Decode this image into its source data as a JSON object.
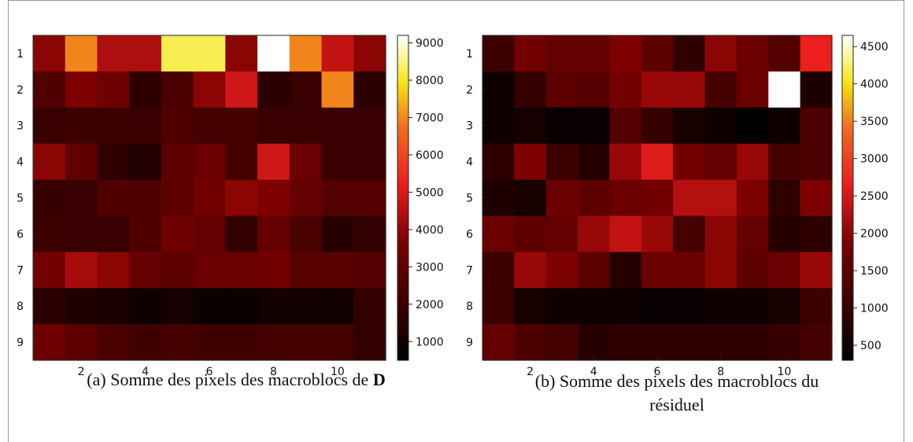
{
  "captions": {
    "a_prefix": "(a) Somme des pixels des macroblocs de ",
    "a_bold": "D",
    "b_line1": "(b) Somme des pixels des macroblocs du",
    "b_line2": "résiduel"
  },
  "chart_data": [
    {
      "type": "heatmap",
      "xticks": [
        2,
        4,
        6,
        8,
        10
      ],
      "yticks": [
        1,
        2,
        3,
        4,
        5,
        6,
        7,
        8,
        9
      ],
      "colormap": "hot",
      "clim": [
        500,
        9200
      ],
      "colorbar_ticks": [
        1000,
        2000,
        3000,
        4000,
        5000,
        6000,
        7000,
        8000,
        9000
      ],
      "values": [
        [
          3900,
          7000,
          4400,
          4400,
          8300,
          8300,
          3900,
          9200,
          7000,
          4700,
          3900
        ],
        [
          2600,
          3700,
          3400,
          1700,
          2400,
          3900,
          4900,
          1600,
          2000,
          7000,
          1600
        ],
        [
          2000,
          2100,
          2100,
          2000,
          2600,
          2300,
          2300,
          2000,
          2000,
          2000,
          2000
        ],
        [
          3900,
          3000,
          1700,
          1400,
          2900,
          3300,
          2300,
          4900,
          3300,
          2000,
          2000
        ],
        [
          1900,
          2000,
          2600,
          2600,
          2900,
          3500,
          3900,
          3700,
          3100,
          2700,
          2700
        ],
        [
          2100,
          2000,
          2000,
          2600,
          3400,
          3100,
          1800,
          3100,
          2400,
          1500,
          1800
        ],
        [
          3500,
          4300,
          3900,
          3200,
          2900,
          3300,
          3300,
          3500,
          2800,
          2800,
          2700
        ],
        [
          1600,
          1300,
          1200,
          900,
          1100,
          800,
          800,
          1000,
          1000,
          1000,
          1800
        ],
        [
          3400,
          2900,
          2400,
          2200,
          2300,
          2200,
          2200,
          2300,
          2300,
          2300,
          1800
        ]
      ]
    },
    {
      "type": "heatmap",
      "xticks": [
        2,
        4,
        6,
        8,
        10
      ],
      "yticks": [
        1,
        2,
        3,
        4,
        5,
        6,
        7,
        8,
        9
      ],
      "colormap": "hot",
      "clim": [
        300,
        4650
      ],
      "colorbar_ticks": [
        500,
        1000,
        1500,
        2000,
        2500,
        3000,
        3500,
        4000,
        4500
      ],
      "values": [
        [
          1100,
          1800,
          1600,
          1600,
          1900,
          1500,
          900,
          2000,
          1700,
          1400,
          2700
        ],
        [
          500,
          1000,
          1500,
          1400,
          1800,
          2100,
          2100,
          1200,
          1700,
          4650,
          700
        ],
        [
          500,
          600,
          400,
          400,
          1400,
          1000,
          600,
          500,
          300,
          500,
          1300
        ],
        [
          900,
          1900,
          1100,
          800,
          2100,
          2600,
          1800,
          1600,
          2100,
          1200,
          1300
        ],
        [
          700,
          600,
          1700,
          1500,
          1700,
          1800,
          2300,
          2300,
          1900,
          900,
          1900
        ],
        [
          1700,
          1500,
          1600,
          2100,
          2400,
          2100,
          1200,
          2000,
          1600,
          800,
          900
        ],
        [
          1100,
          2100,
          1900,
          1500,
          800,
          1700,
          1700,
          2000,
          1500,
          1700,
          2100
        ],
        [
          1100,
          600,
          500,
          500,
          500,
          400,
          400,
          500,
          500,
          600,
          1100
        ],
        [
          1600,
          1300,
          1200,
          800,
          900,
          900,
          900,
          900,
          900,
          1000,
          1200
        ]
      ]
    }
  ]
}
